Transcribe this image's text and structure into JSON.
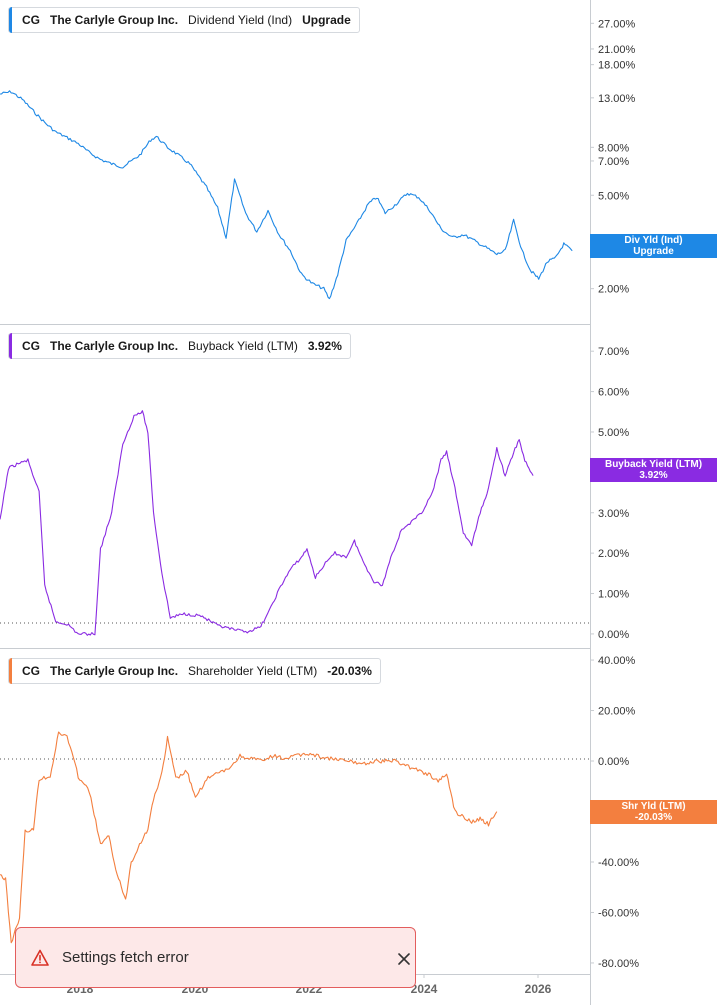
{
  "colors": {
    "dividend": "#1e88e5",
    "buyback": "#8a2be2",
    "shareholder": "#f37f3f",
    "toast_bg": "#fde8e8",
    "toast_border": "#e35d5d"
  },
  "panels": [
    {
      "ticker": "CG",
      "company": "The Carlyle Group Inc.",
      "metric": "Dividend Yield (Ind)",
      "value": "Upgrade",
      "callout_line1": "Div Yld (Ind)",
      "callout_line2": "Upgrade",
      "ticks": [
        "27.00%",
        "21.00%",
        "18.00%",
        "13.00%",
        "8.00%",
        "7.00%",
        "5.00%",
        "2.00%"
      ]
    },
    {
      "ticker": "CG",
      "company": "The Carlyle Group Inc.",
      "metric": "Buyback Yield (LTM)",
      "value": "3.92%",
      "callout_line1": "Buyback Yield (LTM)",
      "callout_line2": "3.92%",
      "ticks": [
        "7.00%",
        "6.00%",
        "5.00%",
        "3.00%",
        "2.00%",
        "1.00%",
        "0.00%"
      ]
    },
    {
      "ticker": "CG",
      "company": "The Carlyle Group Inc.",
      "metric": "Shareholder Yield (LTM)",
      "value": "-20.03%",
      "callout_line1": "Shr Yld (LTM)",
      "callout_line2": "-20.03%",
      "ticks": [
        "40.00%",
        "20.00%",
        "0.00%",
        "-40.00%",
        "-60.00%",
        "-80.00%"
      ]
    }
  ],
  "x_ticks": [
    "2018",
    "2020",
    "2022",
    "2024",
    "2026"
  ],
  "toast": {
    "message": "Settings fetch error"
  },
  "chart_data": [
    {
      "type": "line",
      "title": "",
      "series": [
        {
          "name": "Dividend Yield (Ind)"
        }
      ],
      "y_scale": "log",
      "ylim": [
        1.5,
        32
      ],
      "xlim": [
        2016.1,
        2026.4
      ],
      "points": [
        [
          2016.1,
          13.5
        ],
        [
          2016.3,
          13.8
        ],
        [
          2016.5,
          12.8
        ],
        [
          2016.7,
          11.4
        ],
        [
          2016.9,
          10.2
        ],
        [
          2017.1,
          9.3
        ],
        [
          2017.3,
          8.8
        ],
        [
          2017.5,
          8.3
        ],
        [
          2017.7,
          7.6
        ],
        [
          2017.9,
          7.1
        ],
        [
          2018.1,
          6.8
        ],
        [
          2018.3,
          6.6
        ],
        [
          2018.6,
          7.4
        ],
        [
          2018.8,
          8.6
        ],
        [
          2018.9,
          8.9
        ],
        [
          2019.1,
          8.0
        ],
        [
          2019.3,
          7.4
        ],
        [
          2019.5,
          6.8
        ],
        [
          2019.8,
          5.4
        ],
        [
          2020.0,
          4.4
        ],
        [
          2020.15,
          3.3
        ],
        [
          2020.3,
          5.8
        ],
        [
          2020.5,
          4.2
        ],
        [
          2020.7,
          3.5
        ],
        [
          2020.9,
          4.3
        ],
        [
          2021.1,
          3.4
        ],
        [
          2021.3,
          2.9
        ],
        [
          2021.5,
          2.3
        ],
        [
          2021.7,
          2.1
        ],
        [
          2021.9,
          2.0
        ],
        [
          2022.0,
          1.8
        ],
        [
          2022.15,
          2.3
        ],
        [
          2022.3,
          3.2
        ],
        [
          2022.5,
          3.8
        ],
        [
          2022.7,
          4.6
        ],
        [
          2022.85,
          4.9
        ],
        [
          2023.0,
          4.2
        ],
        [
          2023.2,
          4.6
        ],
        [
          2023.4,
          5.1
        ],
        [
          2023.6,
          4.9
        ],
        [
          2023.8,
          4.3
        ],
        [
          2024.0,
          3.6
        ],
        [
          2024.2,
          3.3
        ],
        [
          2024.4,
          3.4
        ],
        [
          2024.6,
          3.2
        ],
        [
          2024.8,
          3.0
        ],
        [
          2025.0,
          2.8
        ],
        [
          2025.15,
          2.9
        ],
        [
          2025.3,
          3.9
        ],
        [
          2025.45,
          2.9
        ],
        [
          2025.6,
          2.4
        ],
        [
          2025.75,
          2.2
        ],
        [
          2025.9,
          2.6
        ],
        [
          2026.05,
          2.7
        ],
        [
          2026.2,
          3.1
        ],
        [
          2026.35,
          2.9
        ]
      ]
    },
    {
      "type": "line",
      "title": "",
      "series": [
        {
          "name": "Buyback Yield (LTM)"
        }
      ],
      "ylim": [
        -0.2,
        7.5
      ],
      "xlim": [
        2016.1,
        2026.4
      ],
      "points": [
        [
          2016.1,
          2.8
        ],
        [
          2016.25,
          4.1
        ],
        [
          2016.4,
          4.2
        ],
        [
          2016.6,
          4.3
        ],
        [
          2016.8,
          3.5
        ],
        [
          2016.9,
          1.2
        ],
        [
          2017.1,
          0.3
        ],
        [
          2017.3,
          0.25
        ],
        [
          2017.5,
          0.0
        ],
        [
          2017.8,
          0.0
        ],
        [
          2017.9,
          2.1
        ],
        [
          2018.1,
          3.0
        ],
        [
          2018.3,
          4.7
        ],
        [
          2018.5,
          5.4
        ],
        [
          2018.65,
          5.5
        ],
        [
          2018.75,
          5.0
        ],
        [
          2018.85,
          3.0
        ],
        [
          2019.0,
          1.5
        ],
        [
          2019.15,
          0.4
        ],
        [
          2019.4,
          0.5
        ],
        [
          2019.7,
          0.45
        ],
        [
          2020.0,
          0.2
        ],
        [
          2020.3,
          0.1
        ],
        [
          2020.5,
          0.05
        ],
        [
          2020.75,
          0.15
        ],
        [
          2020.9,
          0.5
        ],
        [
          2021.1,
          1.1
        ],
        [
          2021.3,
          1.6
        ],
        [
          2021.5,
          1.9
        ],
        [
          2021.6,
          2.1
        ],
        [
          2021.75,
          1.4
        ],
        [
          2021.9,
          1.7
        ],
        [
          2022.1,
          2.0
        ],
        [
          2022.3,
          1.9
        ],
        [
          2022.45,
          2.3
        ],
        [
          2022.6,
          1.8
        ],
        [
          2022.8,
          1.3
        ],
        [
          2022.95,
          1.2
        ],
        [
          2023.1,
          1.9
        ],
        [
          2023.3,
          2.6
        ],
        [
          2023.5,
          2.8
        ],
        [
          2023.65,
          3.0
        ],
        [
          2023.85,
          3.5
        ],
        [
          2024.0,
          4.3
        ],
        [
          2024.1,
          4.5
        ],
        [
          2024.25,
          3.6
        ],
        [
          2024.4,
          2.5
        ],
        [
          2024.55,
          2.2
        ],
        [
          2024.7,
          3.0
        ],
        [
          2024.85,
          3.6
        ],
        [
          2025.0,
          4.6
        ],
        [
          2025.15,
          3.9
        ],
        [
          2025.3,
          4.5
        ],
        [
          2025.4,
          4.8
        ],
        [
          2025.5,
          4.3
        ],
        [
          2025.65,
          3.92
        ]
      ]
    },
    {
      "type": "line",
      "title": "",
      "series": [
        {
          "name": "Shareholder Yield (LTM)"
        }
      ],
      "ylim": [
        -82,
        42
      ],
      "xlim": [
        2016.1,
        2026.4
      ],
      "points": [
        [
          2016.1,
          -45
        ],
        [
          2016.2,
          -47
        ],
        [
          2016.3,
          -72
        ],
        [
          2016.45,
          -62
        ],
        [
          2016.55,
          -28
        ],
        [
          2016.7,
          -27
        ],
        [
          2016.8,
          -7
        ],
        [
          2017.0,
          -6
        ],
        [
          2017.15,
          11
        ],
        [
          2017.3,
          10
        ],
        [
          2017.5,
          -6
        ],
        [
          2017.7,
          -12
        ],
        [
          2017.9,
          -33
        ],
        [
          2018.05,
          -30
        ],
        [
          2018.2,
          -45
        ],
        [
          2018.35,
          -55
        ],
        [
          2018.45,
          -40
        ],
        [
          2018.6,
          -33
        ],
        [
          2018.75,
          -27
        ],
        [
          2018.85,
          -15
        ],
        [
          2019.0,
          -5
        ],
        [
          2019.1,
          9
        ],
        [
          2019.25,
          -7
        ],
        [
          2019.45,
          -4
        ],
        [
          2019.6,
          -15
        ],
        [
          2019.8,
          -7
        ],
        [
          2020.0,
          -5
        ],
        [
          2020.2,
          -3
        ],
        [
          2020.4,
          2
        ],
        [
          2020.6,
          1
        ],
        [
          2020.8,
          0
        ],
        [
          2021.0,
          2
        ],
        [
          2021.2,
          1
        ],
        [
          2021.4,
          2
        ],
        [
          2021.6,
          3
        ],
        [
          2021.8,
          2
        ],
        [
          2022.0,
          1
        ],
        [
          2022.3,
          0
        ],
        [
          2022.6,
          -1
        ],
        [
          2022.9,
          0
        ],
        [
          2023.2,
          0
        ],
        [
          2023.5,
          -3
        ],
        [
          2023.75,
          -5
        ],
        [
          2023.95,
          -8
        ],
        [
          2024.1,
          -5
        ],
        [
          2024.25,
          -20
        ],
        [
          2024.4,
          -22
        ],
        [
          2024.55,
          -24
        ],
        [
          2024.7,
          -23
        ],
        [
          2024.85,
          -25
        ],
        [
          2025.0,
          -20.03
        ]
      ]
    }
  ]
}
